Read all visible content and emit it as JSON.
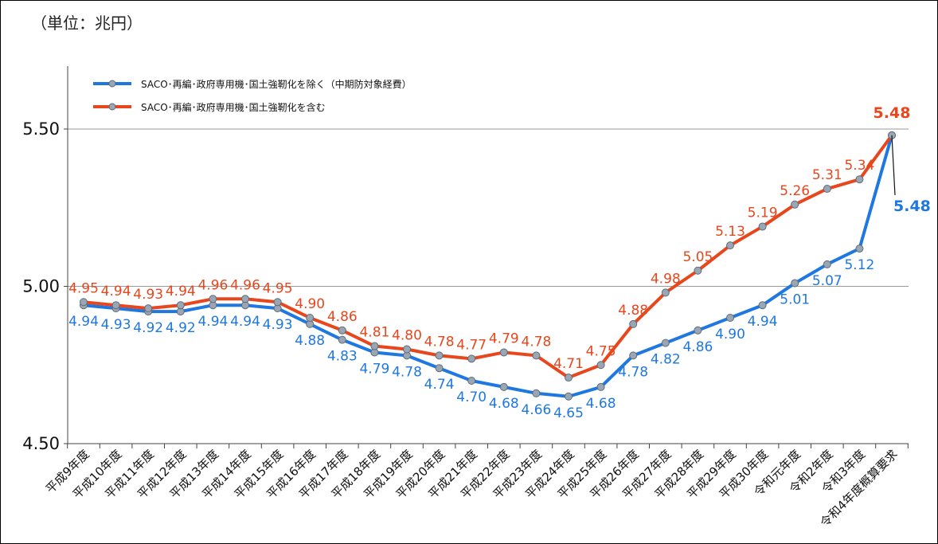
{
  "unit_label": "（単位：兆円）",
  "chart_data": {
    "type": "line",
    "title": "",
    "xlabel": "",
    "ylabel": "",
    "ylim": [
      4.5,
      5.7
    ],
    "yticks": [
      "4.50",
      "5.00",
      "5.50"
    ],
    "grid": "horizontal",
    "legend_position": "top-left",
    "categories": [
      "平成9年度",
      "平成10年度",
      "平成11年度",
      "平成12年度",
      "平成13年度",
      "平成14年度",
      "平成15年度",
      "平成16年度",
      "平成17年度",
      "平成18年度",
      "平成19年度",
      "平成20年度",
      "平成21年度",
      "平成22年度",
      "平成23年度",
      "平成24年度",
      "平成25年度",
      "平成26年度",
      "平成27年度",
      "平成28年度",
      "平成29年度",
      "平成30年度",
      "令和元年度",
      "令和2年度",
      "令和3年度",
      "令和4年度概算要求"
    ],
    "series": [
      {
        "name": "SACO･再編･政府専用機･国土強靭化を除く（中期防対象経費）",
        "color": "#1f78e0",
        "values": [
          4.94,
          4.93,
          4.92,
          4.92,
          4.94,
          4.94,
          4.93,
          4.88,
          4.83,
          4.79,
          4.78,
          4.74,
          4.7,
          4.68,
          4.66,
          4.65,
          4.68,
          4.78,
          4.82,
          4.86,
          4.9,
          4.94,
          5.01,
          5.07,
          5.12,
          5.48
        ],
        "labels": [
          "4.94",
          "4.93",
          "4.92",
          "4.92",
          "4.94",
          "4.94",
          "4.93",
          "4.88",
          "4.83",
          "4.79",
          "4.78",
          "4.74",
          "4.70",
          "4.68",
          "4.66",
          "4.65",
          "4.68",
          "4.78",
          "4.82",
          "4.86",
          "4.90",
          "4.94",
          "5.01",
          "5.07",
          "5.12",
          "5.48"
        ]
      },
      {
        "name": "SACO･再編･政府専用機･国土強靭化を含む",
        "color": "#e8461c",
        "values": [
          4.95,
          4.94,
          4.93,
          4.94,
          4.96,
          4.96,
          4.95,
          4.9,
          4.86,
          4.81,
          4.8,
          4.78,
          4.77,
          4.79,
          4.78,
          4.71,
          4.75,
          4.88,
          4.98,
          5.05,
          5.13,
          5.19,
          5.26,
          5.31,
          5.34,
          5.48
        ],
        "labels": [
          "4.95",
          "4.94",
          "4.93",
          "4.94",
          "4.96",
          "4.96",
          "4.95",
          "4.90",
          "4.86",
          "4.81",
          "4.80",
          "4.78",
          "4.77",
          "4.79",
          "4.78",
          "4.71",
          "4.75",
          "4.88",
          "4.98",
          "5.05",
          "5.13",
          "5.19",
          "5.26",
          "5.31",
          "5.34",
          "5.48"
        ]
      }
    ]
  }
}
